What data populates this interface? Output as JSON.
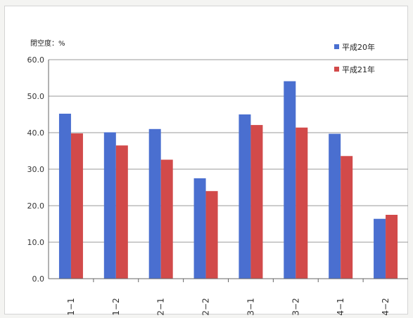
{
  "chart_data": {
    "type": "bar",
    "ylabel": "閉空度：%",
    "ylim": [
      0,
      60
    ],
    "yticks": [
      "0.0",
      "10.0",
      "20.0",
      "30.0",
      "40.0",
      "50.0",
      "60.0"
    ],
    "categories": [
      "1−1",
      "1−2",
      "2−1",
      "2−2",
      "3−1",
      "3−2",
      "4−1",
      "4−2"
    ],
    "series": [
      {
        "name": "平成20年",
        "color": "#4a6fd0",
        "values": [
          45.2,
          40.1,
          41.0,
          27.5,
          45.0,
          54.1,
          39.7,
          16.4
        ]
      },
      {
        "name": "平成21年",
        "color": "#d24a4a",
        "values": [
          39.8,
          36.5,
          32.6,
          24.0,
          42.1,
          41.4,
          33.6,
          17.5
        ]
      }
    ],
    "grid": true,
    "legend_position": "top-right"
  }
}
